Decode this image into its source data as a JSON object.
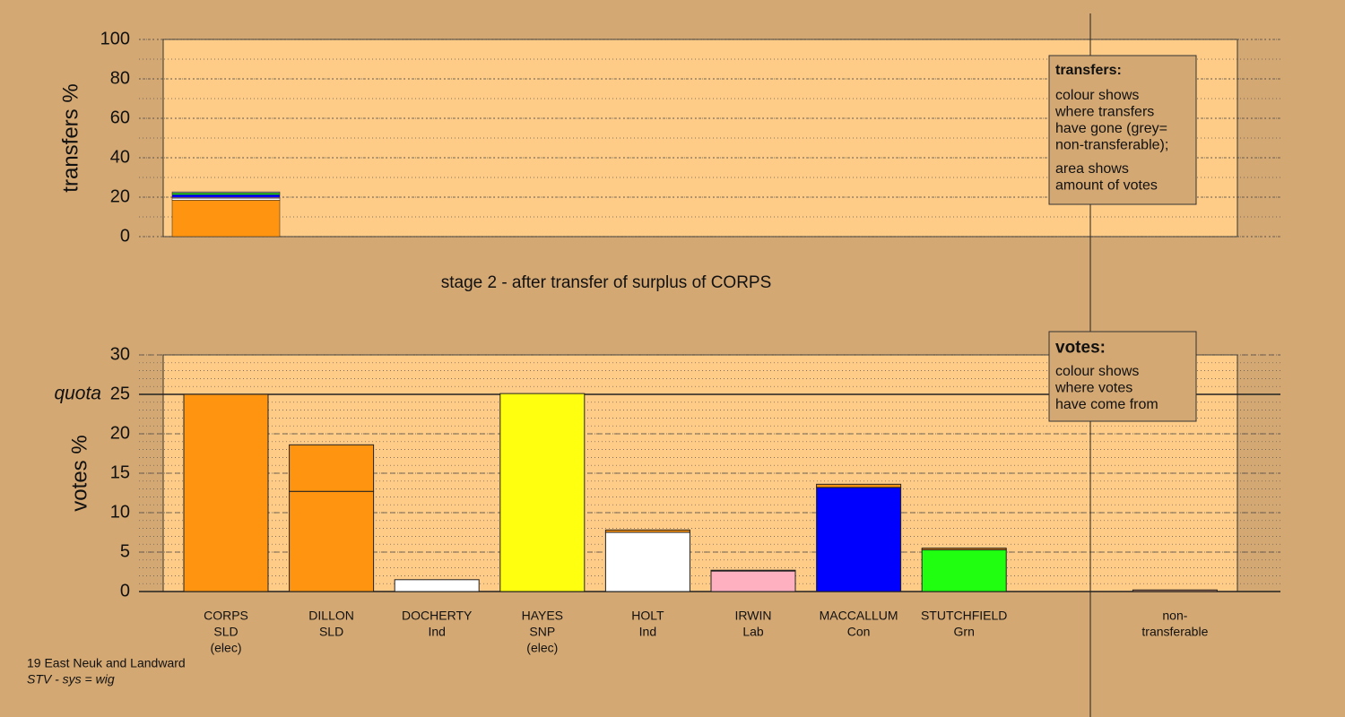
{
  "chart_data": [
    {
      "type": "bar",
      "stacked": true,
      "ylabel": "transfers %",
      "ylim": [
        0,
        100
      ],
      "yticks": [
        0,
        20,
        40,
        60,
        80,
        100
      ],
      "minor_grid": 10,
      "series": [
        {
          "color": "#ff9410",
          "values": [
            18.5
          ]
        },
        {
          "color": "#ffffff",
          "values": [
            1.0
          ]
        },
        {
          "color": "#ffb0c0",
          "values": [
            0.4
          ]
        },
        {
          "color": "#0000ff",
          "values": [
            1.4
          ]
        },
        {
          "color": "#20ff10",
          "values": [
            0.8
          ]
        },
        {
          "color": "#a0a0a0",
          "values": [
            0.6
          ]
        }
      ],
      "note": {
        "title": "transfers:",
        "paragraphs": [
          [
            "colour shows",
            "where transfers",
            "have gone (grey=",
            "non-transferable);"
          ],
          [
            "area shows",
            "amount of votes"
          ]
        ]
      }
    },
    {
      "type": "bar",
      "stacked": true,
      "title": "stage 2 - after transfer of surplus of CORPS",
      "ylabel": "votes %",
      "ylim": [
        0,
        30
      ],
      "yticks": [
        0,
        5,
        10,
        15,
        20,
        25,
        30
      ],
      "minor_grid": 1,
      "quota": {
        "value": 25,
        "label": "quota"
      },
      "categories": [
        [
          "CORPS",
          "SLD",
          "(elec)"
        ],
        [
          "DILLON",
          "SLD"
        ],
        [
          "DOCHERTY",
          "Ind"
        ],
        [
          "HAYES",
          "SNP",
          "(elec)"
        ],
        [
          "HOLT",
          "Ind"
        ],
        [
          "IRWIN",
          "Lab"
        ],
        [
          "MACCALLUM",
          "Con"
        ],
        [
          "STUTCHFIELD",
          "Grn"
        ],
        null,
        [
          "non-",
          "transferable"
        ]
      ],
      "series": [
        {
          "colors": [
            "#ff9410",
            "#ff9410",
            "#ffffff",
            "#ffff10",
            "#ffffff",
            "#ffb0c0",
            "#0000ff",
            "#20ff10",
            null,
            "#c08060"
          ],
          "values": [
            25,
            12.7,
            1.5,
            25.1,
            7.5,
            2.6,
            13.2,
            5.3,
            null,
            0.2
          ]
        },
        {
          "color": "#ff9410",
          "values": [
            null,
            5.9,
            null,
            null,
            0.3,
            0.1,
            0.4,
            0.2,
            null,
            null
          ]
        }
      ],
      "note": {
        "title": "votes:",
        "paragraphs": [
          [
            "colour shows",
            "where votes",
            "have come from"
          ]
        ]
      }
    }
  ],
  "footer": [
    "19 East Neuk and Landward",
    "STV - sys = wig"
  ]
}
